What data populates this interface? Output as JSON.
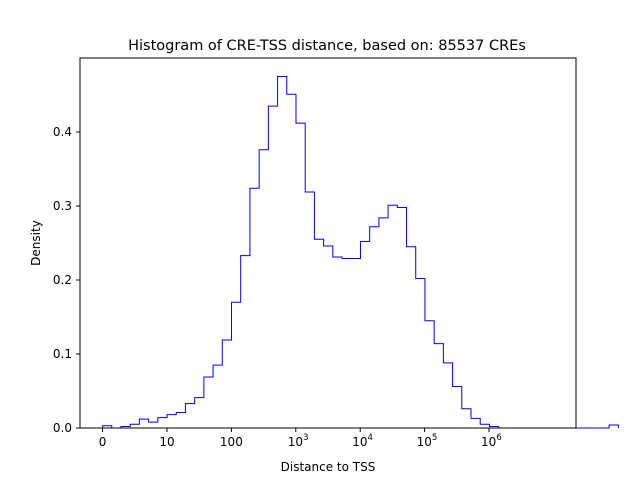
{
  "chart_data": {
    "type": "histogram-step",
    "title": "Histogram of CRE-TSS distance, based on: 85537 CREs",
    "xlabel": "Distance to TSS",
    "ylabel": "Density",
    "x_axis_note": "log-like scale; tick values at 0, 10, 100, 10^3, 10^4, 10^5, 10^6",
    "xlim_log10": [
      -0.35,
      7.35
    ],
    "ylim": [
      0,
      0.5
    ],
    "x_ticks": [
      {
        "pos": 0,
        "base": "0",
        "exp": ""
      },
      {
        "pos": 1,
        "base": "10",
        "exp": ""
      },
      {
        "pos": 2,
        "base": "100",
        "exp": ""
      },
      {
        "pos": 3,
        "base": "10",
        "exp": "3"
      },
      {
        "pos": 4,
        "base": "10",
        "exp": "4"
      },
      {
        "pos": 5,
        "base": "10",
        "exp": "5"
      },
      {
        "pos": 6,
        "base": "10",
        "exp": "6"
      }
    ],
    "y_ticks": [
      {
        "value": 0.0,
        "label": "0.0"
      },
      {
        "value": 0.1,
        "label": "0.1"
      },
      {
        "value": 0.2,
        "label": "0.2"
      },
      {
        "value": 0.3,
        "label": "0.3"
      },
      {
        "value": 0.4,
        "label": "0.4"
      }
    ],
    "bin_width_log10": 0.143,
    "bin_start_log10": 0,
    "values": [
      0.003,
      0.0,
      0.002,
      0.005,
      0.012,
      0.008,
      0.014,
      0.018,
      0.021,
      0.033,
      0.041,
      0.069,
      0.085,
      0.119,
      0.17,
      0.233,
      0.324,
      0.376,
      0.435,
      0.475,
      0.451,
      0.412,
      0.319,
      0.255,
      0.246,
      0.231,
      0.229,
      0.229,
      0.252,
      0.272,
      0.284,
      0.301,
      0.298,
      0.245,
      0.202,
      0.145,
      0.114,
      0.088,
      0.056,
      0.026,
      0.013,
      0.005,
      0.002,
      0.0,
      0.0,
      0.0,
      0.0,
      0.0,
      0.0,
      0.0,
      0.0,
      0.0,
      0.0,
      0.0,
      0.0,
      0.004
    ],
    "color": "#0000ff"
  }
}
